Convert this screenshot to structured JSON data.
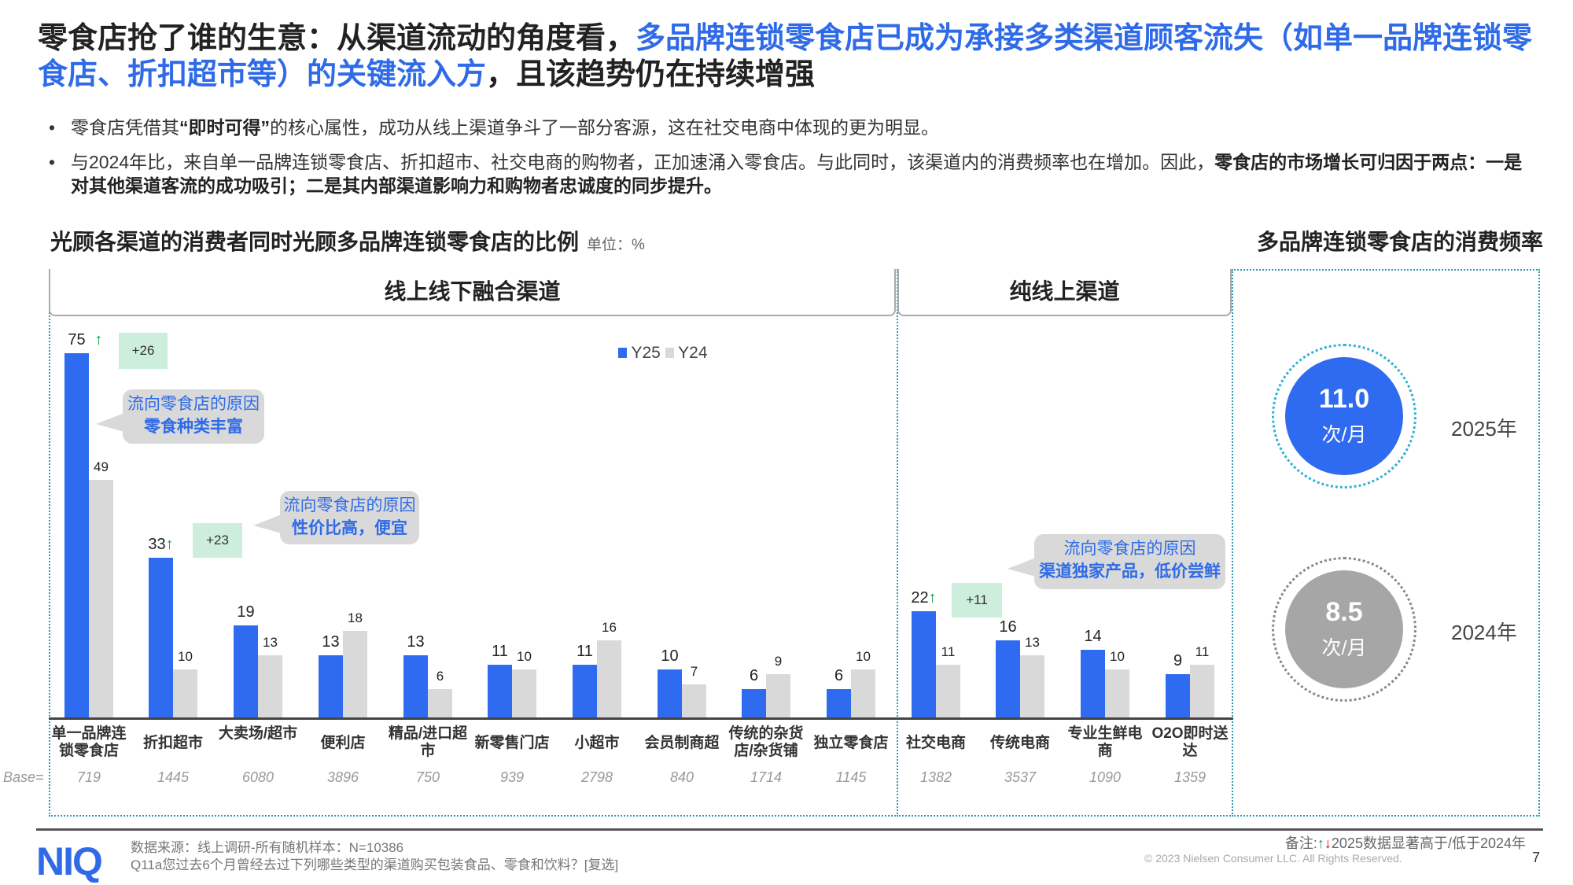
{
  "title": {
    "part1": "零食店抢了谁的生意：从渠道流动的角度看，",
    "highlight": "多品牌连锁零食店已成为承接多类渠道顾客流失（如单一品牌连锁零食店、折扣超市等）的关键流入方",
    "part2": "，且该趋势仍在持续增强"
  },
  "bullets": [
    {
      "pre": "零食店凭借其",
      "bold": "“即时可得”",
      "post": "的核心属性，成功从线上渠道争斗了一部分客源，这在社交电商中体现的更为明显。"
    },
    {
      "pre": "与2024年比，来自单一品牌连锁零食店、折扣超市、社交电商的购物者，正加速涌入零食店。与此同时，该渠道内的消费频率也在增加。因此，",
      "bold": "零食店的市场增长可归因于两点：一是对其他渠道客流的成功吸引；二是其内部渠道影响力和购物者忠诚度的同步提升。",
      "post": ""
    }
  ],
  "chart_title": "光顾各渠道的消费者同时光顾多品牌连锁零食店的比例",
  "unit": "单位：%",
  "freq_title": "多品牌连锁零食店的消费频率",
  "panel_omni": "线上线下融合渠道",
  "panel_online": "纯线上渠道",
  "base_label": "Base=",
  "chart_data": {
    "type": "bar",
    "series": [
      {
        "name": "Y25",
        "color": "#2f6bf0",
        "values": [
          75,
          33,
          19,
          13,
          13,
          11,
          11,
          10,
          6,
          6,
          22,
          16,
          14,
          9
        ]
      },
      {
        "name": "Y24",
        "color": "#d9d9d9",
        "values": [
          49,
          10,
          13,
          18,
          6,
          10,
          16,
          7,
          9,
          10,
          11,
          13,
          10,
          11
        ]
      }
    ],
    "categories": [
      "单一品牌连锁零食店",
      "折扣超市",
      "大卖场/超市",
      "便利店",
      "精品/进口超市",
      "新零售门店",
      "小超市",
      "会员制商超",
      "传统的杂货店/杂货铺",
      "独立零食店",
      "社交电商",
      "传统电商",
      "专业生鲜电商",
      "O2O即时送达"
    ],
    "bases": [
      "719",
      "1445",
      "6080",
      "3896",
      "750",
      "939",
      "2798",
      "840",
      "1714",
      "1145",
      "1382",
      "3537",
      "1090",
      "1359"
    ],
    "significant_up": [
      0,
      1,
      10
    ],
    "deltas": [
      "+26",
      "+23",
      "+11"
    ],
    "legend_placement": "top"
  },
  "callouts": [
    {
      "title": "流向零食店的原因",
      "reason": "零食种类丰富"
    },
    {
      "title": "流向零食店的原因",
      "reason": "性价比高，便宜"
    },
    {
      "title": "流向零食店的原因",
      "reason": "渠道独家产品，低价尝鲜"
    }
  ],
  "frequency": [
    {
      "value": "11.0",
      "unit": "次/月",
      "year": "2025年",
      "color": "#2f6bf0"
    },
    {
      "value": "8.5",
      "unit": "次/月",
      "year": "2024年",
      "color": "#a6a6a6"
    }
  ],
  "footer": {
    "logo": "NIQ",
    "source": "数据来源：线上调研-所有随机样本：N=10386",
    "question": "Q11a您过去6个月曾经去过下列哪些类型的渠道购买包装食品、零食和饮料？[复选]",
    "note_label": "备注:",
    "note_text": "2025数据显著高于/低于2024年",
    "copyright": "© 2023 Nielsen Consumer LLC. All Rights Reserved.",
    "page": "7"
  }
}
